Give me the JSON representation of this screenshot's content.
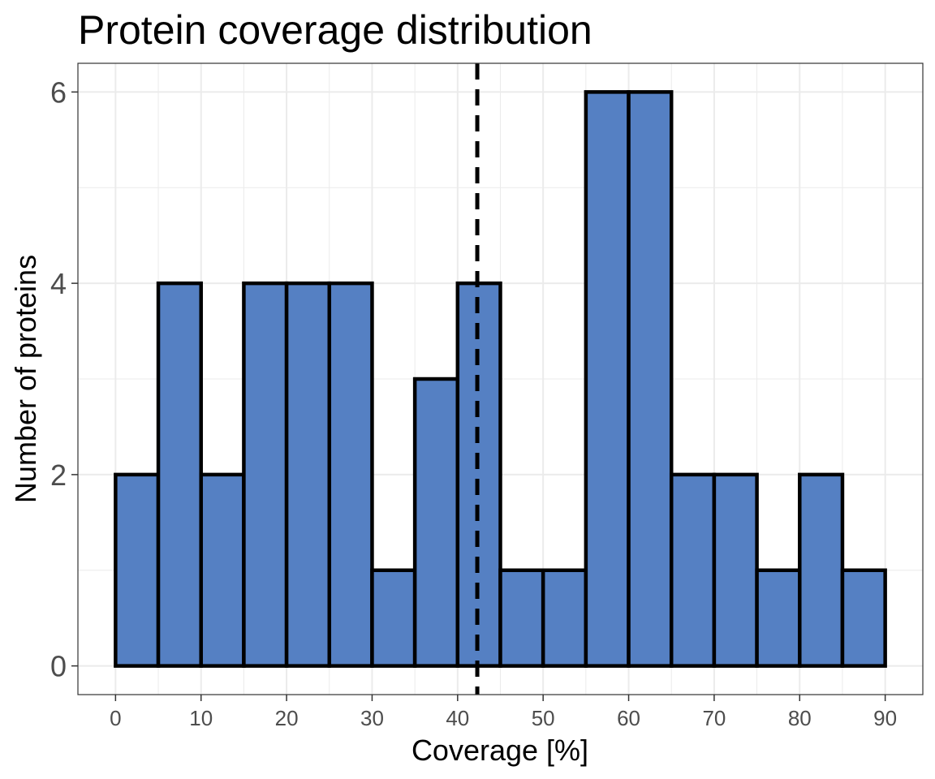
{
  "chart_data": {
    "type": "bar",
    "title": "Protein coverage distribution",
    "xlabel": "Coverage [%]",
    "ylabel": "Number of proteins",
    "bin_edges": [
      0,
      5,
      10,
      15,
      20,
      25,
      30,
      35,
      40,
      45,
      50,
      55,
      60,
      65,
      70,
      75,
      80,
      85,
      90
    ],
    "values": [
      2,
      4,
      2,
      4,
      4,
      4,
      1,
      3,
      4,
      1,
      1,
      6,
      6,
      2,
      2,
      1,
      2,
      1
    ],
    "xlim": [
      -4.4,
      94.4
    ],
    "ylim": [
      -0.3,
      6.3
    ],
    "x_ticks": [
      0,
      10,
      20,
      30,
      40,
      50,
      60,
      70,
      80,
      90
    ],
    "x_tick_labels": [
      "0",
      "10",
      "20",
      "30",
      "40",
      "50",
      "60",
      "70",
      "80",
      "90"
    ],
    "y_ticks": [
      0,
      2,
      4,
      6
    ],
    "y_tick_labels": [
      "0",
      "2",
      "4",
      "6"
    ],
    "vline": {
      "x": 42.3,
      "style": "dashed",
      "color": "#000000"
    },
    "bar_fill": "#5580c3",
    "bar_edge": "#000000",
    "grid": true,
    "legend": "none"
  }
}
